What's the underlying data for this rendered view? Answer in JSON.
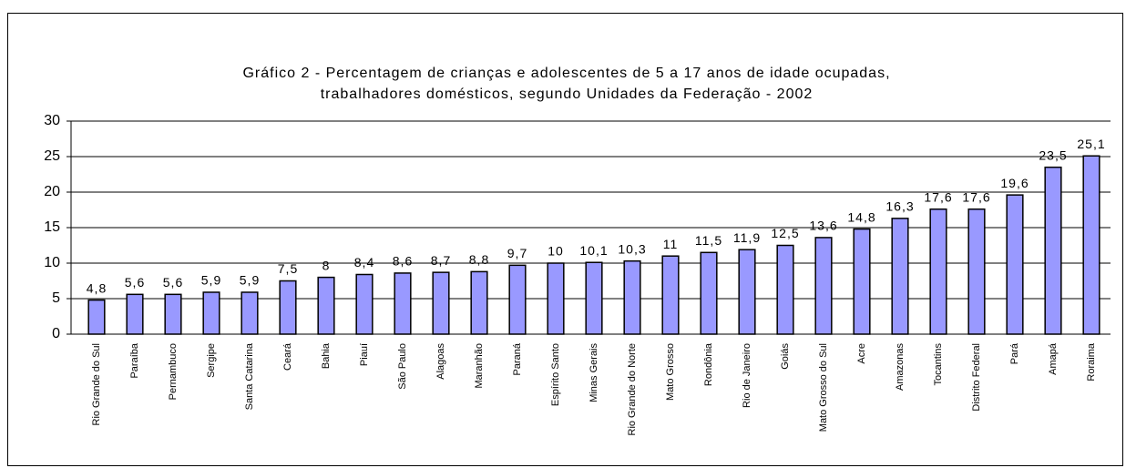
{
  "chart_data": {
    "type": "bar",
    "title": [
      "Gráfico 2 - Percentagem de crianças e adolescentes de 5 a 17 anos de idade ocupadas,",
      "trabalhadores domésticos, segundo Unidades da Federação - 2002"
    ],
    "categories": [
      "Rio Grande do Sul",
      "Paraíba",
      "Pernambuco",
      "Sergipe",
      "Santa Catarina",
      "Ceará",
      "Bahia",
      "Piauí",
      "São Paulo",
      "Alagoas",
      "Maranhão",
      "Paraná",
      "Espírito Santo",
      "Minas Gerais",
      "Rio Grande do Norte",
      "Mato Grosso",
      "Rondônia",
      "Rio de Janeiro",
      "Goiás",
      "Mato Grosso do Sul",
      "Acre",
      "Amazonas",
      "Tocantins",
      "Distrito Federal",
      "Pará",
      "Amapá",
      "Roraima"
    ],
    "values": [
      4.8,
      5.6,
      5.6,
      5.9,
      5.9,
      7.5,
      8,
      8.4,
      8.6,
      8.7,
      8.8,
      9.7,
      10,
      10.1,
      10.3,
      11,
      11.5,
      11.9,
      12.5,
      13.6,
      14.8,
      16.3,
      17.6,
      17.6,
      19.6,
      23.5,
      25.1
    ],
    "value_labels": [
      "4,8",
      "5,6",
      "5,6",
      "5,9",
      "5,9",
      "7,5",
      "8",
      "8,4",
      "8,6",
      "8,7",
      "8,8",
      "9,7",
      "10",
      "10,1",
      "10,3",
      "11",
      "11,5",
      "11,9",
      "12,5",
      "13,6",
      "14,8",
      "16,3",
      "17,6",
      "17,6",
      "19,6",
      "23,5",
      "25,1"
    ],
    "color": "#9999ff",
    "ylim": [
      0,
      30
    ],
    "yticks": [
      0,
      5,
      10,
      15,
      20,
      25,
      30
    ],
    "grid": true
  }
}
